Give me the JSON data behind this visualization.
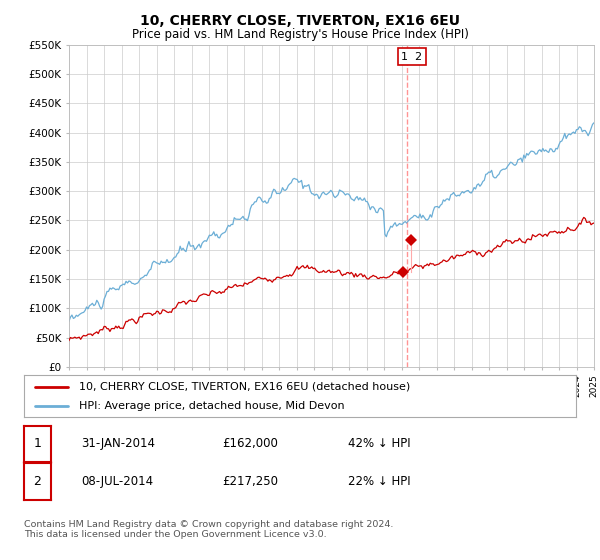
{
  "title": "10, CHERRY CLOSE, TIVERTON, EX16 6EU",
  "subtitle": "Price paid vs. HM Land Registry's House Price Index (HPI)",
  "ylim": [
    0,
    550000
  ],
  "yticks": [
    0,
    50000,
    100000,
    150000,
    200000,
    250000,
    300000,
    350000,
    400000,
    450000,
    500000,
    550000
  ],
  "ytick_labels": [
    "£0",
    "£50K",
    "£100K",
    "£150K",
    "£200K",
    "£250K",
    "£300K",
    "£350K",
    "£400K",
    "£450K",
    "£500K",
    "£550K"
  ],
  "hpi_color": "#6baed6",
  "price_color": "#cc0000",
  "vline_color": "#ff8888",
  "legend_price": "10, CHERRY CLOSE, TIVERTON, EX16 6EU (detached house)",
  "legend_hpi": "HPI: Average price, detached house, Mid Devon",
  "table_row1": [
    "1",
    "31-JAN-2014",
    "£162,000",
    "42% ↓ HPI"
  ],
  "table_row2": [
    "2",
    "08-JUL-2014",
    "£217,250",
    "22% ↓ HPI"
  ],
  "footer": "Contains HM Land Registry data © Crown copyright and database right 2024.\nThis data is licensed under the Open Government Licence v3.0.",
  "sale1_x": 2014.08,
  "sale1_y": 162000,
  "sale2_x": 2014.54,
  "sale2_y": 217250,
  "vline_x": 2014.3,
  "xlim_start": 1995,
  "xlim_end": 2025,
  "hpi_seed": 10,
  "price_seed": 7
}
